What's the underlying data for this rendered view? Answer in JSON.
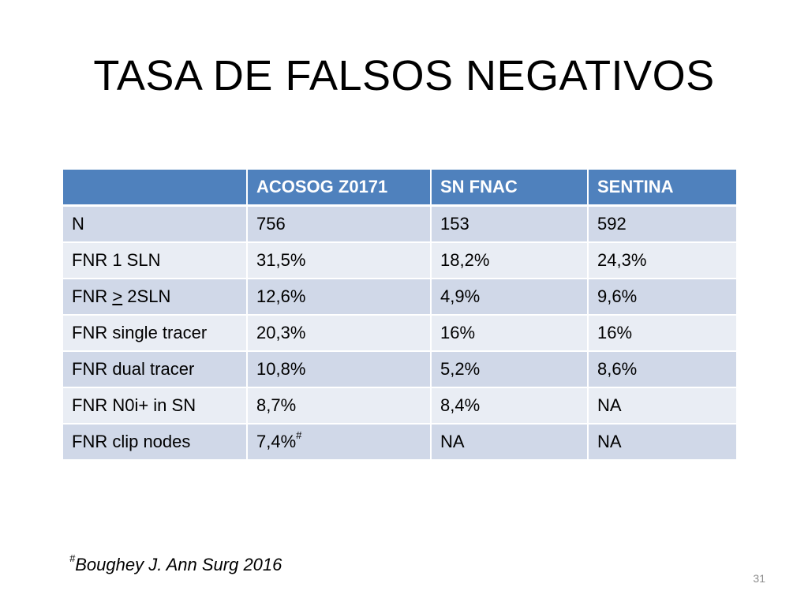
{
  "title": "TASA DE FALSOS NEGATIVOS",
  "table": {
    "headers": [
      "",
      "ACOSOG Z0171",
      "SN FNAC",
      "SENTINA"
    ],
    "rows": [
      [
        "N",
        "756",
        "153",
        "592"
      ],
      [
        "FNR 1 SLN",
        "31,5%",
        "18,2%",
        "24,3%"
      ],
      [
        "FNR > 2SLN",
        "12,6%",
        "4,9%",
        "9,6%"
      ],
      [
        "FNR single tracer",
        "20,3%",
        "16%",
        "16%"
      ],
      [
        "FNR dual tracer",
        "10,8%",
        "5,2%",
        "8,6%"
      ],
      [
        "FNR N0i+ in SN",
        "8,7%",
        "8,4%",
        "NA"
      ],
      [
        "FNR clip nodes",
        "7,4%",
        "NA",
        "NA"
      ]
    ],
    "row3_label_parts": {
      "prefix": "FNR ",
      "underlined": ">",
      "suffix": " 2SLN"
    },
    "clip_nodes_marker": "#"
  },
  "footnote": {
    "marker": "#",
    "text": "Boughey J. Ann Surg 2016"
  },
  "page_number": "31",
  "colors": {
    "header_bg": "#4f81bd",
    "row_odd_bg": "#d0d8e8",
    "row_even_bg": "#e9edf4",
    "header_text": "#ffffff"
  }
}
